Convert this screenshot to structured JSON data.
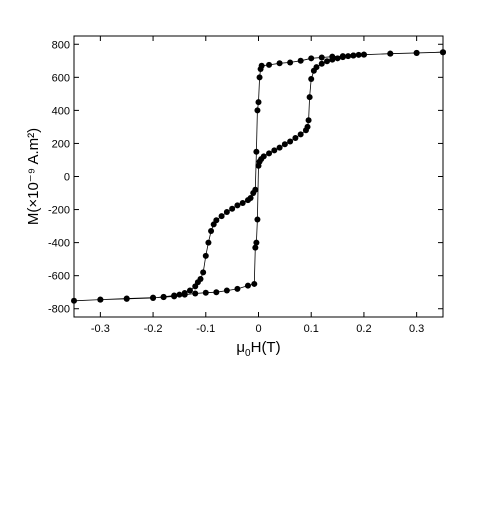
{
  "chart_data": {
    "type": "scatter",
    "title": "",
    "xlabel_parts": [
      "μ",
      "0",
      "H(T)"
    ],
    "ylabel": "M(×10⁻⁹ A.m²)",
    "xlim": [
      -0.35,
      0.35
    ],
    "ylim": [
      -850,
      850
    ],
    "xticks": [
      -0.3,
      -0.2,
      -0.1,
      0,
      0.1,
      0.2,
      0.3
    ],
    "xtick_labels": [
      "-0.3",
      "-0.2",
      "-0.1",
      "0",
      "0.1",
      "0.2",
      "0.3"
    ],
    "yticks": [
      -800,
      -600,
      -400,
      -200,
      0,
      200,
      400,
      600,
      800
    ],
    "ytick_labels": [
      "-800",
      "-600",
      "-400",
      "-200",
      "0",
      "200",
      "400",
      "600",
      "800"
    ],
    "grid": false,
    "series": [
      {
        "marker": "filled-circle",
        "line": "thin-connecting",
        "points": [
          [
            0.35,
            752
          ],
          [
            0.3,
            747
          ],
          [
            0.25,
            743
          ],
          [
            0.2,
            737
          ],
          [
            0.19,
            736
          ],
          [
            0.18,
            732
          ],
          [
            0.17,
            728
          ],
          [
            0.16,
            722
          ],
          [
            0.15,
            715
          ],
          [
            0.14,
            707
          ],
          [
            0.13,
            697
          ],
          [
            0.12,
            682
          ],
          [
            0.11,
            662
          ],
          [
            0.105,
            640
          ],
          [
            0.1,
            590
          ],
          [
            0.097,
            480
          ],
          [
            0.095,
            340
          ],
          [
            0.093,
            300
          ],
          [
            0.09,
            280
          ],
          [
            0.08,
            255
          ],
          [
            0.07,
            233
          ],
          [
            0.06,
            212
          ],
          [
            0.05,
            195
          ],
          [
            0.04,
            175
          ],
          [
            0.03,
            158
          ],
          [
            0.02,
            140
          ],
          [
            0.01,
            122
          ],
          [
            0.005,
            105
          ],
          [
            0.002,
            90
          ],
          [
            0.0,
            65
          ],
          [
            -0.002,
            -260
          ],
          [
            -0.004,
            -400
          ],
          [
            -0.006,
            -430
          ],
          [
            -0.008,
            -650
          ],
          [
            -0.02,
            -660
          ],
          [
            -0.04,
            -680
          ],
          [
            -0.06,
            -690
          ],
          [
            -0.08,
            -700
          ],
          [
            -0.1,
            -703
          ],
          [
            -0.12,
            -708
          ],
          [
            -0.14,
            -715
          ],
          [
            -0.16,
            -720
          ],
          [
            -0.18,
            -728
          ],
          [
            -0.2,
            -735
          ],
          [
            -0.25,
            -740
          ],
          [
            -0.3,
            -745
          ],
          [
            -0.35,
            -752
          ],
          [
            -0.3,
            -745
          ],
          [
            -0.25,
            -738
          ],
          [
            -0.2,
            -733
          ],
          [
            -0.18,
            -730
          ],
          [
            -0.16,
            -725
          ],
          [
            -0.15,
            -715
          ],
          [
            -0.14,
            -705
          ],
          [
            -0.13,
            -690
          ],
          [
            -0.12,
            -665
          ],
          [
            -0.115,
            -640
          ],
          [
            -0.11,
            -620
          ],
          [
            -0.105,
            -580
          ],
          [
            -0.1,
            -480
          ],
          [
            -0.095,
            -400
          ],
          [
            -0.09,
            -330
          ],
          [
            -0.085,
            -290
          ],
          [
            -0.08,
            -265
          ],
          [
            -0.07,
            -240
          ],
          [
            -0.06,
            -215
          ],
          [
            -0.05,
            -195
          ],
          [
            -0.04,
            -175
          ],
          [
            -0.03,
            -160
          ],
          [
            -0.02,
            -143
          ],
          [
            -0.015,
            -130
          ],
          [
            -0.01,
            -100
          ],
          [
            -0.006,
            -80
          ],
          [
            -0.004,
            150
          ],
          [
            -0.002,
            400
          ],
          [
            0.0,
            450
          ],
          [
            0.002,
            600
          ],
          [
            0.004,
            650
          ],
          [
            0.006,
            670
          ],
          [
            0.02,
            675
          ],
          [
            0.04,
            685
          ],
          [
            0.06,
            690
          ],
          [
            0.08,
            700
          ],
          [
            0.1,
            715
          ],
          [
            0.12,
            720
          ],
          [
            0.14,
            725
          ],
          [
            0.16,
            728
          ],
          [
            0.18,
            732
          ],
          [
            0.2,
            737
          ],
          [
            0.25,
            743
          ],
          [
            0.3,
            748
          ],
          [
            0.35,
            752
          ]
        ]
      }
    ]
  }
}
